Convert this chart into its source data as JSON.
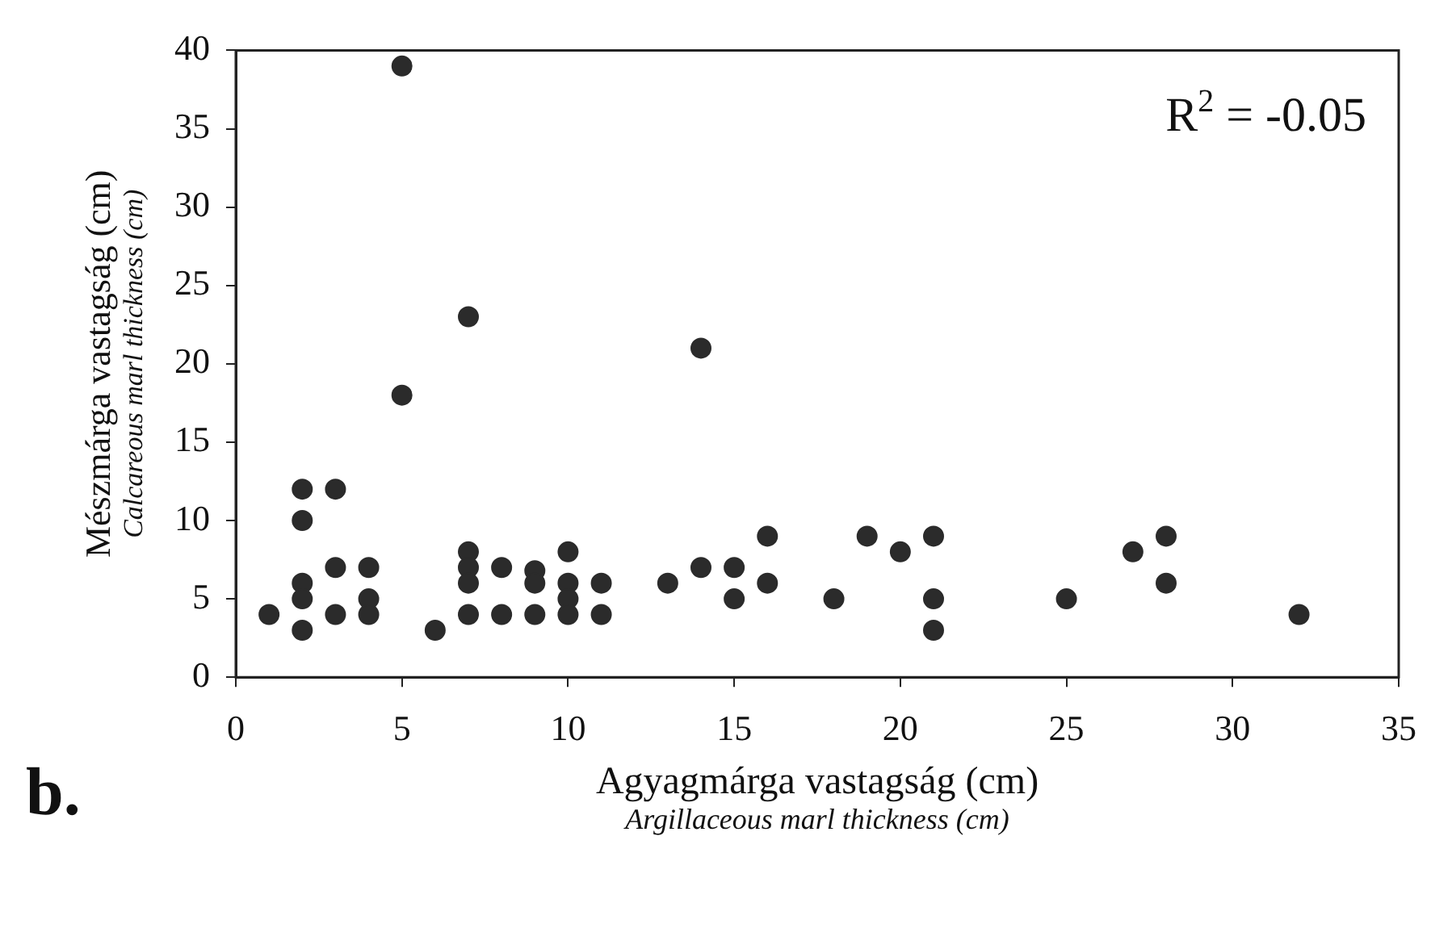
{
  "chart_data": {
    "type": "scatter",
    "xlabel": "Agyagmárga vastagság (cm)\nArgillaceous marl thickness (cm)",
    "ylabel": "Mészmárga vastagság (cm)\nCalcareous marl thickness (cm)",
    "annotations": [
      "R$^{2}$ = -0.05",
      "b."
    ],
    "series": [
      {
        "color": "#2b2b2b",
        "x": [
          1,
          2,
          2,
          2,
          2,
          2,
          3,
          3,
          3,
          4,
          4,
          4,
          5,
          5,
          6,
          7,
          7,
          7,
          7,
          7,
          8,
          8,
          9,
          9,
          9,
          10,
          10,
          10,
          10,
          11,
          11,
          13,
          14,
          14,
          15,
          15,
          16,
          16,
          18,
          19,
          20,
          21,
          21,
          21,
          25,
          27,
          28,
          28,
          32
        ],
        "values": [
          4,
          12,
          10,
          6,
          5,
          3,
          12,
          7,
          4,
          7,
          5,
          4,
          39,
          18,
          3,
          23,
          8,
          7,
          6,
          4,
          7,
          4,
          6.8,
          6,
          4,
          8,
          6,
          5,
          4,
          6,
          4,
          6,
          21,
          7,
          7,
          5,
          9,
          6,
          5,
          9,
          8,
          9,
          5,
          3,
          5,
          8,
          9,
          6,
          4
        ]
      }
    ],
    "xlim": [
      0,
      35
    ],
    "xticks": [
      0,
      5,
      10,
      15,
      20,
      25,
      30,
      35
    ],
    "ylim": [
      0,
      40
    ],
    "yticks": [
      0,
      5,
      10,
      15,
      20,
      25,
      30,
      35,
      40
    ],
    "grid": false,
    "legend": false,
    "marker": "circle"
  }
}
